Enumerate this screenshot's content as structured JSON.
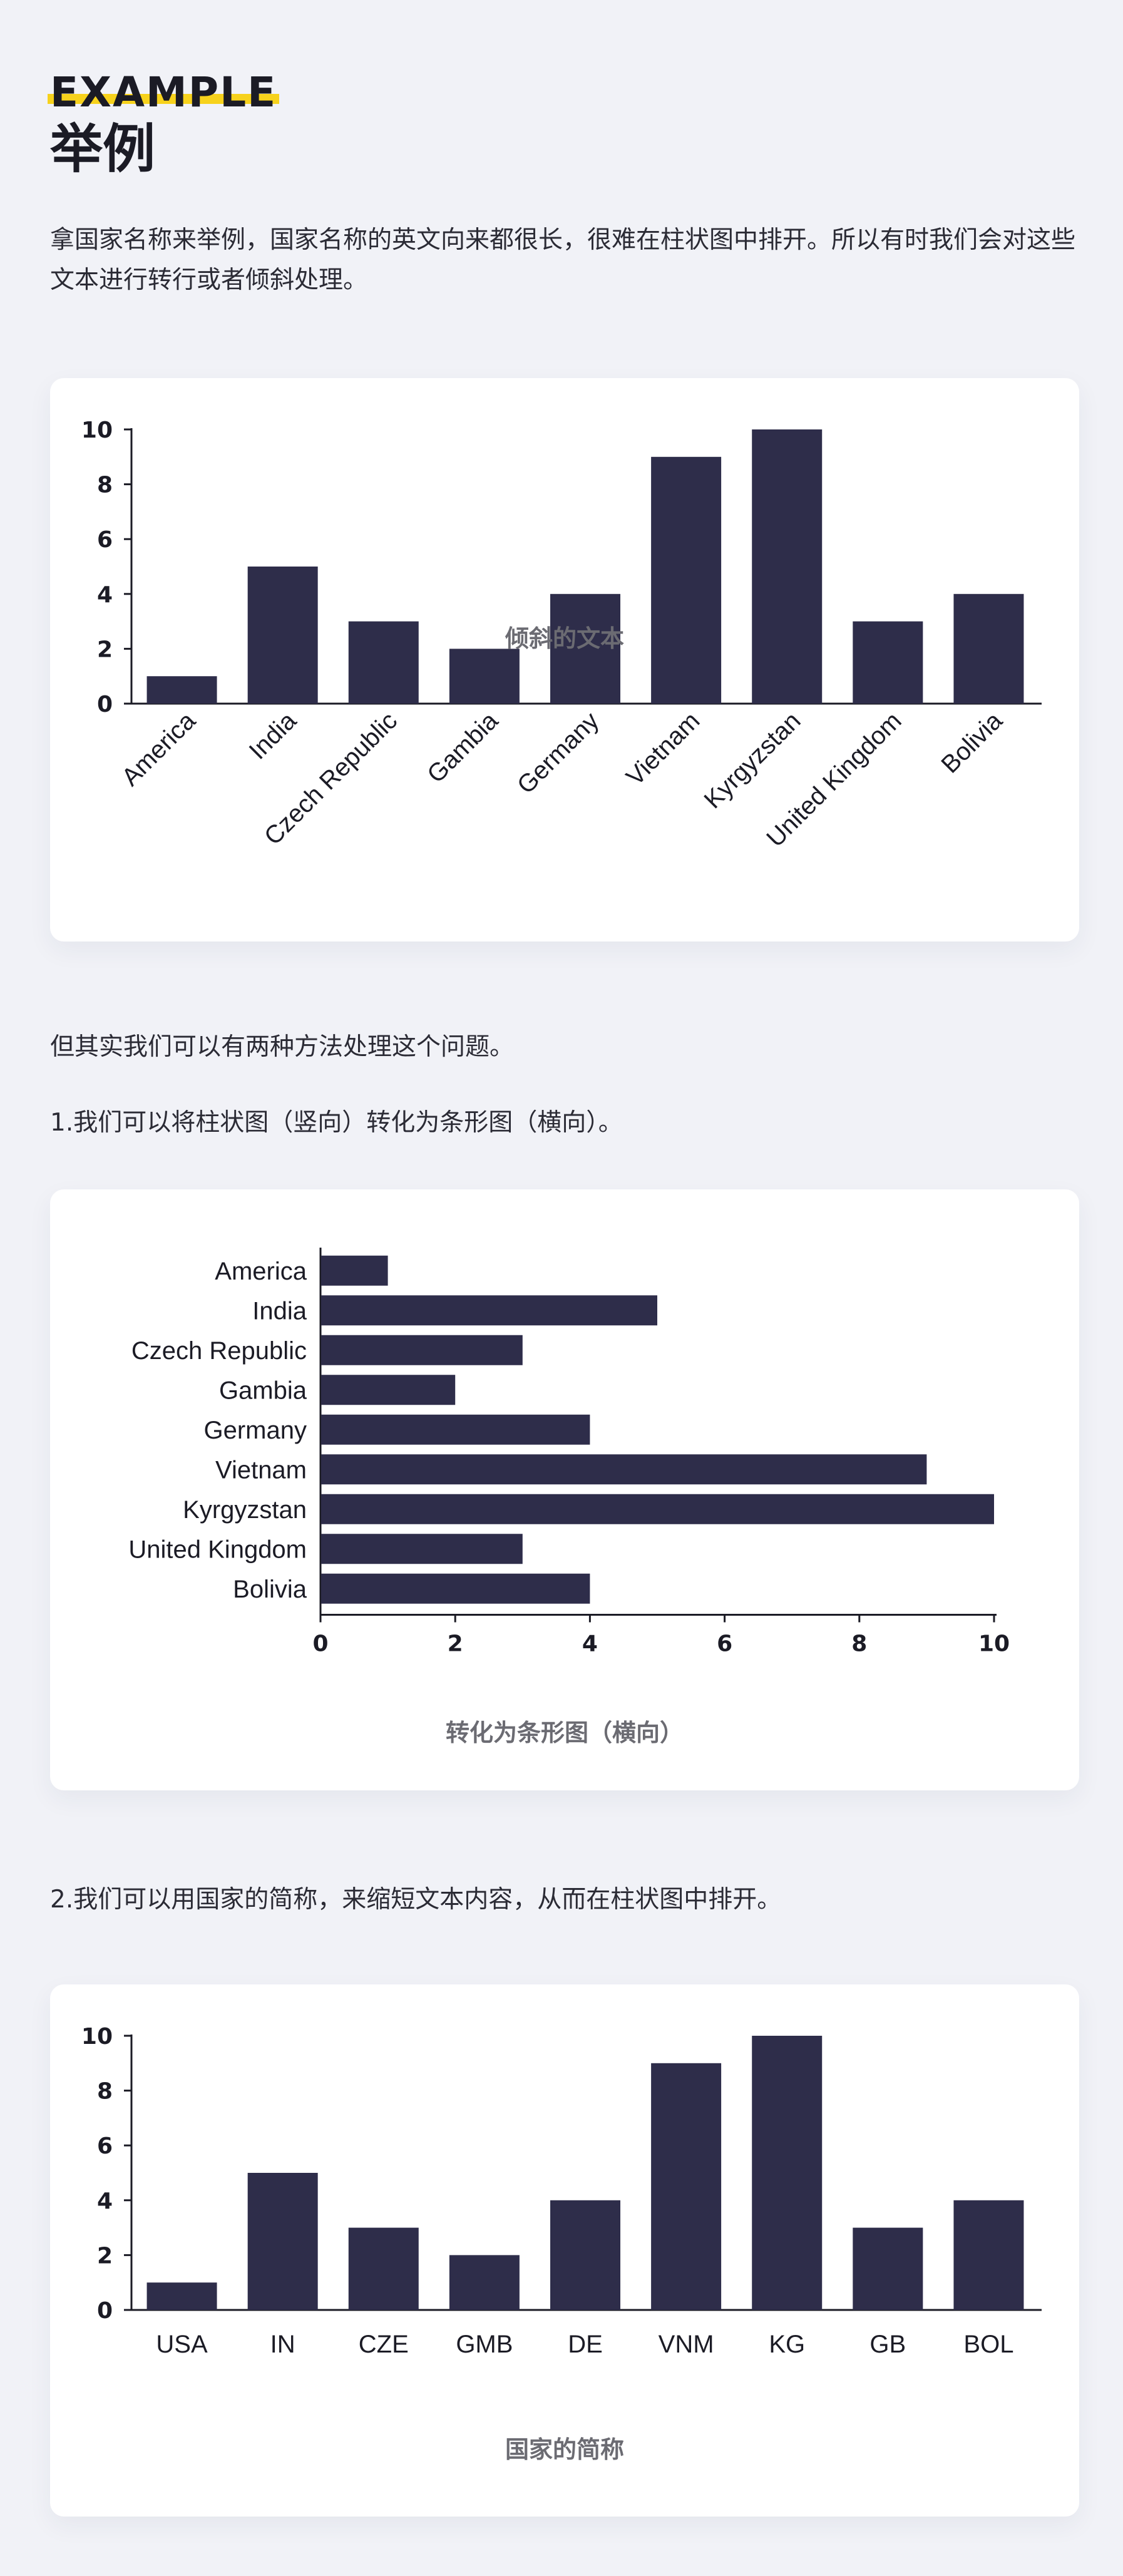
{
  "header": {
    "eyebrow": "EXAMPLE",
    "title": "举例"
  },
  "intro": "拿国家名称来举例，国家名称的英文向来都很长，很难在柱状图中排开。所以有时我们会对这些文本进行转行或者倾斜处理。",
  "middle_text": "但其实我们可以有两种方法处理这个问题。",
  "method1": "1.我们可以将柱状图（竖向）转化为条形图（横向）。",
  "method2": "2.我们可以用国家的简称，来缩短文本内容，从而在柱状图中排开。",
  "colors": {
    "bar": "#2e2d4a",
    "accent": "#f7d21c",
    "axis": "#1b1b25"
  },
  "chart_data": [
    {
      "type": "bar",
      "orientation": "vertical",
      "categories": [
        "America",
        "India",
        "Czech Republic",
        "Gambia",
        "Germany",
        "Vietnam",
        "Kyrgyzstan",
        "United Kingdom",
        "Bolivia"
      ],
      "values": [
        1,
        5,
        3,
        2,
        4,
        9,
        10,
        3,
        4
      ],
      "yticks": [
        "0",
        "2",
        "4",
        "6",
        "8",
        "10"
      ],
      "ylim": [
        0,
        10
      ],
      "label_rotation": "-45deg",
      "caption": "倾斜的文本"
    },
    {
      "type": "bar",
      "orientation": "horizontal",
      "categories": [
        "America",
        "India",
        "Czech Republic",
        "Gambia",
        "Germany",
        "Vietnam",
        "Kyrgyzstan",
        "United Kingdom",
        "Bolivia"
      ],
      "values": [
        1,
        5,
        3,
        2,
        4,
        9,
        10,
        3,
        4
      ],
      "xticks": [
        "0",
        "2",
        "4",
        "6",
        "8",
        "10"
      ],
      "xlim": [
        0,
        10
      ],
      "caption": "转化为条形图（横向）"
    },
    {
      "type": "bar",
      "orientation": "vertical",
      "categories": [
        "USA",
        "IN",
        "CZE",
        "GMB",
        "DE",
        "VNM",
        "KG",
        "GB",
        "BOL"
      ],
      "values": [
        1,
        5,
        3,
        2,
        4,
        9,
        10,
        3,
        4
      ],
      "yticks": [
        "0",
        "2",
        "4",
        "6",
        "8",
        "10"
      ],
      "ylim": [
        0,
        10
      ],
      "caption": "国家的简称"
    }
  ]
}
